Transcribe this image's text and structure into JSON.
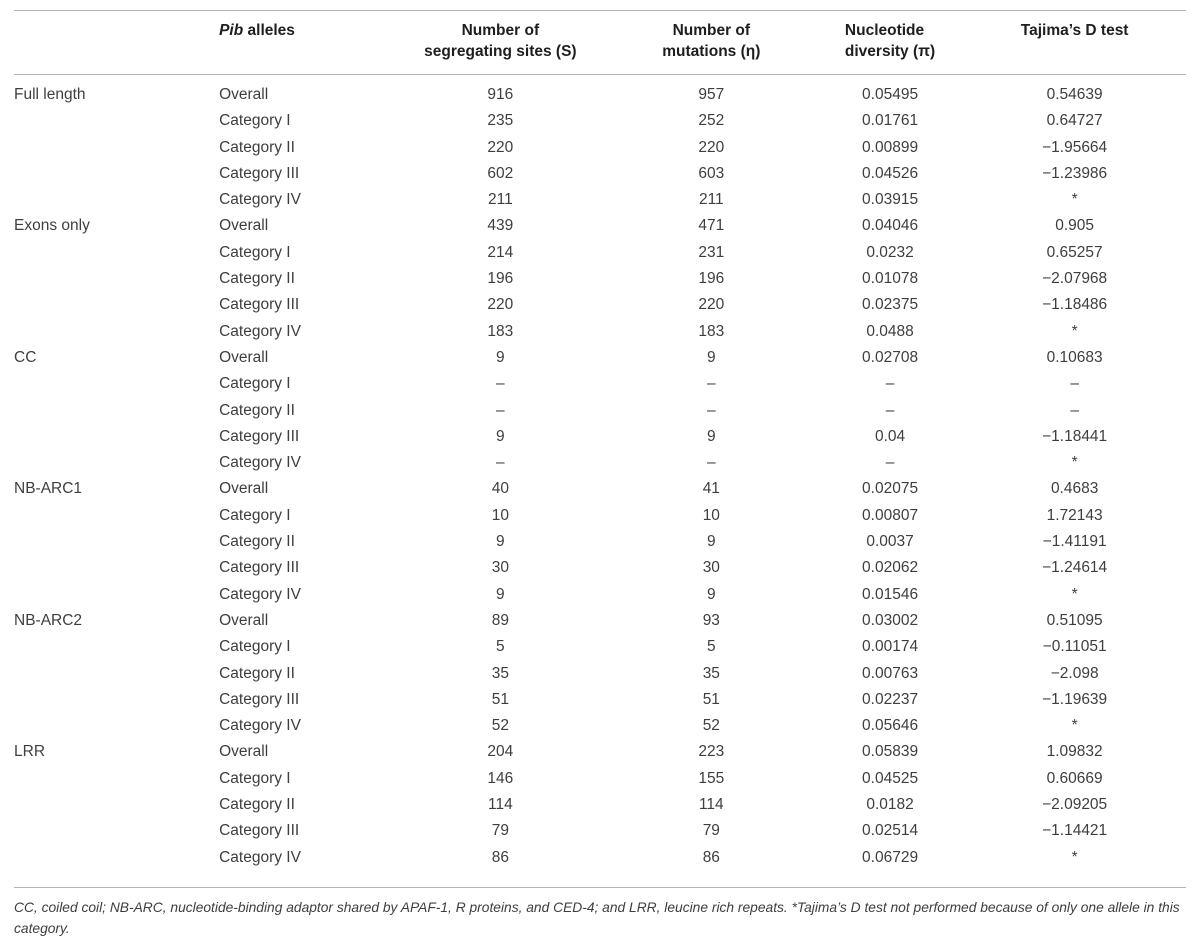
{
  "table": {
    "headers": {
      "region": "",
      "alleles_italic": "Pib",
      "alleles_rest": " alleles",
      "seg_line1": "Number of",
      "seg_line2": "segregating sites (S)",
      "mut_line1": "Number of",
      "mut_line2": "mutations (η)",
      "nuc_line1": "Nucleotide",
      "nuc_line2": "diversity (π)",
      "tajima": "Tajima’s D test"
    },
    "sections": [
      {
        "name": "Full length",
        "rows": [
          {
            "allele": "Overall",
            "s": "916",
            "eta": "957",
            "pi": "0.05495",
            "tajima": "0.54639"
          },
          {
            "allele": "Category I",
            "s": "235",
            "eta": "252",
            "pi": "0.01761",
            "tajima": "0.64727"
          },
          {
            "allele": "Category II",
            "s": "220",
            "eta": "220",
            "pi": "0.00899",
            "tajima": "−1.95664"
          },
          {
            "allele": "Category III",
            "s": "602",
            "eta": "603",
            "pi": "0.04526",
            "tajima": "−1.23986"
          },
          {
            "allele": "Category IV",
            "s": "211",
            "eta": "211",
            "pi": "0.03915",
            "tajima": "*"
          }
        ]
      },
      {
        "name": "Exons only",
        "rows": [
          {
            "allele": "Overall",
            "s": "439",
            "eta": "471",
            "pi": "0.04046",
            "tajima": "0.905"
          },
          {
            "allele": "Category I",
            "s": "214",
            "eta": "231",
            "pi": "0.0232",
            "tajima": "0.65257"
          },
          {
            "allele": "Category II",
            "s": "196",
            "eta": "196",
            "pi": "0.01078",
            "tajima": "−2.07968"
          },
          {
            "allele": "Category III",
            "s": "220",
            "eta": "220",
            "pi": "0.02375",
            "tajima": "−1.18486"
          },
          {
            "allele": "Category IV",
            "s": "183",
            "eta": "183",
            "pi": "0.0488",
            "tajima": "*"
          }
        ]
      },
      {
        "name": "CC",
        "rows": [
          {
            "allele": "Overall",
            "s": "9",
            "eta": "9",
            "pi": "0.02708",
            "tajima": "0.10683"
          },
          {
            "allele": "Category I",
            "s": "–",
            "eta": "–",
            "pi": "–",
            "tajima": "–"
          },
          {
            "allele": "Category II",
            "s": "–",
            "eta": "–",
            "pi": "–",
            "tajima": "–"
          },
          {
            "allele": "Category III",
            "s": "9",
            "eta": "9",
            "pi": "0.04",
            "tajima": "−1.18441"
          },
          {
            "allele": "Category IV",
            "s": "–",
            "eta": "–",
            "pi": "–",
            "tajima": "*"
          }
        ]
      },
      {
        "name": "NB-ARC1",
        "rows": [
          {
            "allele": "Overall",
            "s": "40",
            "eta": "41",
            "pi": "0.02075",
            "tajima": "0.4683"
          },
          {
            "allele": "Category I",
            "s": "10",
            "eta": "10",
            "pi": "0.00807",
            "tajima": "1.72143"
          },
          {
            "allele": "Category II",
            "s": "9",
            "eta": "9",
            "pi": "0.0037",
            "tajima": "−1.41191"
          },
          {
            "allele": "Category III",
            "s": "30",
            "eta": "30",
            "pi": "0.02062",
            "tajima": "−1.24614"
          },
          {
            "allele": "Category IV",
            "s": "9",
            "eta": "9",
            "pi": "0.01546",
            "tajima": "*"
          }
        ]
      },
      {
        "name": "NB-ARC2",
        "rows": [
          {
            "allele": "Overall",
            "s": "89",
            "eta": "93",
            "pi": "0.03002",
            "tajima": "0.51095"
          },
          {
            "allele": "Category I",
            "s": "5",
            "eta": "5",
            "pi": "0.00174",
            "tajima": "−0.11051"
          },
          {
            "allele": "Category II",
            "s": "35",
            "eta": "35",
            "pi": "0.00763",
            "tajima": "−2.098"
          },
          {
            "allele": "Category III",
            "s": "51",
            "eta": "51",
            "pi": "0.02237",
            "tajima": "−1.19639"
          },
          {
            "allele": "Category IV",
            "s": "52",
            "eta": "52",
            "pi": "0.05646",
            "tajima": "*"
          }
        ]
      },
      {
        "name": "LRR",
        "rows": [
          {
            "allele": "Overall",
            "s": "204",
            "eta": "223",
            "pi": "0.05839",
            "tajima": "1.09832"
          },
          {
            "allele": "Category I",
            "s": "146",
            "eta": "155",
            "pi": "0.04525",
            "tajima": "0.60669"
          },
          {
            "allele": "Category II",
            "s": "114",
            "eta": "114",
            "pi": "0.0182",
            "tajima": "−2.09205"
          },
          {
            "allele": "Category III",
            "s": "79",
            "eta": "79",
            "pi": "0.02514",
            "tajima": "−1.14421"
          },
          {
            "allele": "Category IV",
            "s": "86",
            "eta": "86",
            "pi": "0.06729",
            "tajima": "*"
          }
        ]
      }
    ]
  },
  "footnote": {
    "text": "CC, coiled coil; NB-ARC, nucleotide-binding adaptor shared by APAF-1, R proteins, and CED-4; and LRR, leucine rich repeats. *Tajima’s D test not performed because of only one allele in this category."
  },
  "colors": {
    "rule": "#b4b4b4",
    "header_text": "#1e1e1e",
    "body_text": "#3e3e40"
  }
}
